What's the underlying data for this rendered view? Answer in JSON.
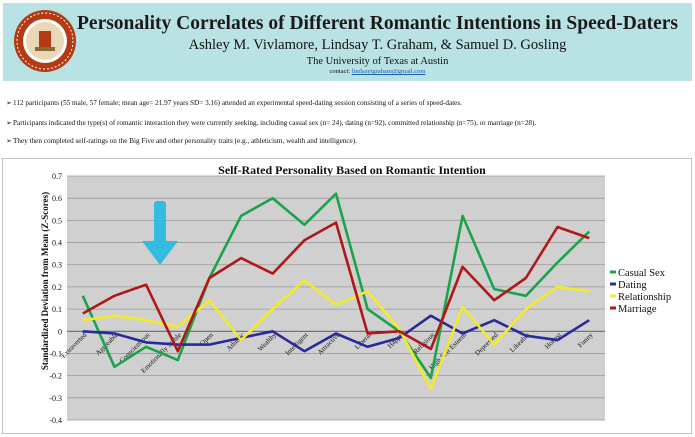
{
  "header": {
    "title": "Personality Correlates of Different Romantic Intentions in Speed-Daters",
    "authors": "Ashley M. Vivlamore, Lindsay T. Graham, & Samuel D. Gosling",
    "university": "The University of Texas at Austin",
    "contact_label": "contact:",
    "contact_email": "lindsaytgraham@gmail.com",
    "accent_color": "#b8e2e3"
  },
  "bullets": [
    "112 participants (55 male, 57 female; mean age= 21.97 years SD= 3.16) attended an experimental speed-dating session consisting of a series of speed-dates.",
    "Participants indicated the type(s) of romantic interaction they were currently seeking, including casual sex (n= 24), dating (n=92), committed relationship (n=75), or marriage (n=28).",
    "They then completed self-ratings on the Big Five and other personality traits (e.g., athleticism, wealth and intelligence)."
  ],
  "chart_data": {
    "type": "line",
    "title": "Self-Rated Personality Based on Romantic Intention",
    "ylabel": "Standardized Deviation from Mean (Z-Scores)",
    "xlabel": "",
    "ylim": [
      -0.4,
      0.7
    ],
    "yticks": [
      "0.7",
      "0.6",
      "0.5",
      "0.4",
      "0.3",
      "0.2",
      "0.1",
      "0",
      "-0.1",
      "-0.2",
      "-0.3",
      "-0.4"
    ],
    "grid": true,
    "legend_position": "right",
    "categories": [
      "Extraverted",
      "Agreeable",
      "Conscientious",
      "Emotionally Stable",
      "Open",
      "Athletic",
      "Wealthy",
      "Intelligent",
      "Attractive",
      "Liberal",
      "Happy",
      "Religious",
      "High Self Esteem",
      "Depressed",
      "Likeable",
      "Honest",
      "Funny"
    ],
    "series": [
      {
        "name": "Casual Sex",
        "color": "#1aa34a",
        "values": [
          0.16,
          -0.16,
          -0.07,
          -0.13,
          0.24,
          0.52,
          0.6,
          0.48,
          0.62,
          0.1,
          0.0,
          -0.21,
          0.52,
          0.19,
          0.16,
          0.31,
          0.45
        ]
      },
      {
        "name": "Dating",
        "color": "#2a2a9a",
        "values": [
          0.0,
          -0.01,
          -0.05,
          -0.06,
          -0.06,
          -0.03,
          0.0,
          -0.09,
          -0.01,
          -0.07,
          -0.03,
          0.07,
          -0.01,
          0.05,
          -0.02,
          -0.04,
          0.05
        ]
      },
      {
        "name": "Relationship",
        "color": "#f2ea2a",
        "values": [
          0.05,
          0.07,
          0.05,
          0.02,
          0.14,
          -0.04,
          0.1,
          0.23,
          0.12,
          0.18,
          0.01,
          -0.26,
          0.11,
          -0.06,
          0.1,
          0.2,
          0.18
        ]
      },
      {
        "name": "Marriage",
        "color": "#b01818",
        "values": [
          0.08,
          0.16,
          0.21,
          -0.09,
          0.24,
          0.33,
          0.26,
          0.41,
          0.49,
          -0.01,
          0.0,
          -0.08,
          0.29,
          0.14,
          0.24,
          0.47,
          0.42
        ]
      }
    ],
    "annotation_icon": "down-arrow-icon",
    "annotation_color": "#33bbe0",
    "plot_background": "#d0d0d0"
  }
}
